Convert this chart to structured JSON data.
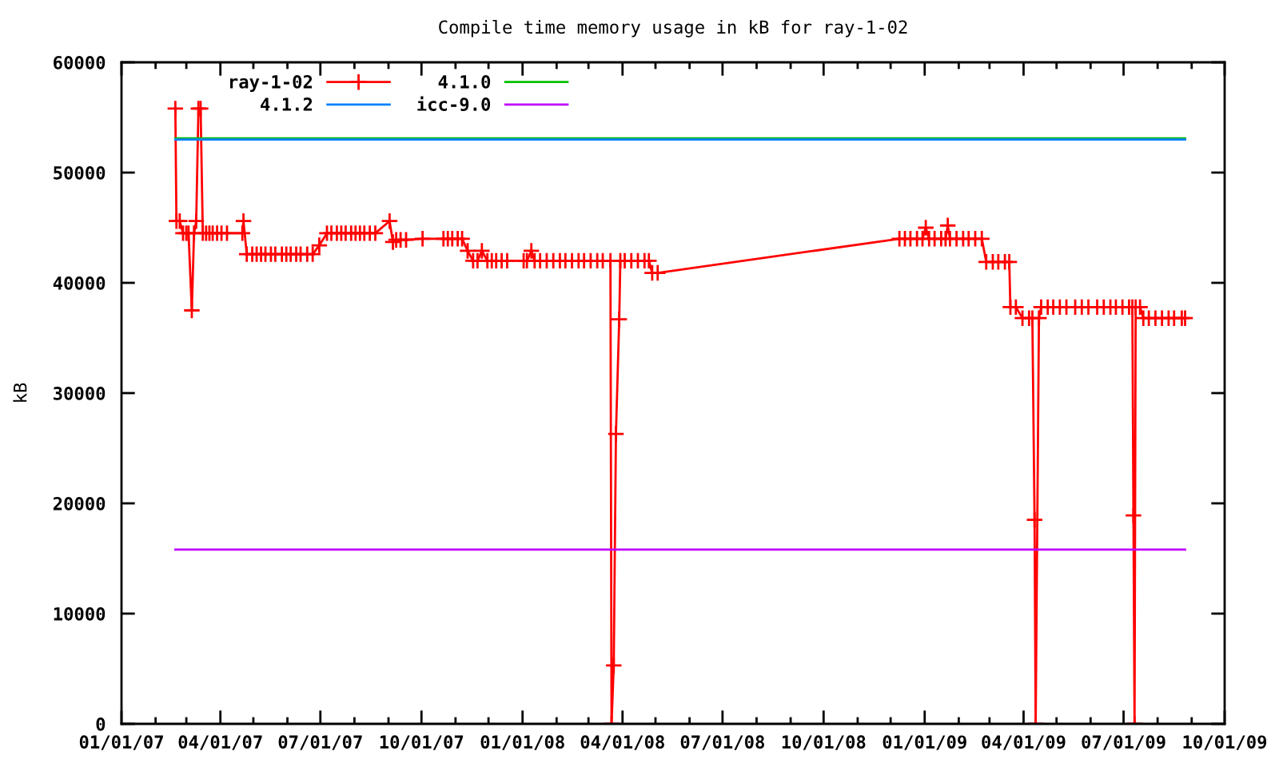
{
  "chart_data": {
    "type": "line",
    "title": "Compile time memory usage in kB for ray-1-02",
    "ylabel": "kB",
    "xlim": [
      "2007-01-01",
      "2009-10-01"
    ],
    "xticks": [
      {
        "value": "2007-01-01",
        "label": "01/01/07"
      },
      {
        "value": "2007-02-01",
        "label": null
      },
      {
        "value": "2007-03-01",
        "label": null
      },
      {
        "value": "2007-04-01",
        "label": "04/01/07"
      },
      {
        "value": "2007-05-01",
        "label": null
      },
      {
        "value": "2007-06-01",
        "label": null
      },
      {
        "value": "2007-07-01",
        "label": "07/01/07"
      },
      {
        "value": "2007-08-01",
        "label": null
      },
      {
        "value": "2007-09-01",
        "label": null
      },
      {
        "value": "2007-10-01",
        "label": "10/01/07"
      },
      {
        "value": "2007-11-01",
        "label": null
      },
      {
        "value": "2007-12-01",
        "label": null
      },
      {
        "value": "2008-01-01",
        "label": "01/01/08"
      },
      {
        "value": "2008-02-01",
        "label": null
      },
      {
        "value": "2008-03-01",
        "label": null
      },
      {
        "value": "2008-04-01",
        "label": "04/01/08"
      },
      {
        "value": "2008-05-01",
        "label": null
      },
      {
        "value": "2008-06-01",
        "label": null
      },
      {
        "value": "2008-07-01",
        "label": "07/01/08"
      },
      {
        "value": "2008-08-01",
        "label": null
      },
      {
        "value": "2008-09-01",
        "label": null
      },
      {
        "value": "2008-10-01",
        "label": "10/01/08"
      },
      {
        "value": "2008-11-01",
        "label": null
      },
      {
        "value": "2008-12-01",
        "label": null
      },
      {
        "value": "2009-01-01",
        "label": "01/01/09"
      },
      {
        "value": "2009-02-01",
        "label": null
      },
      {
        "value": "2009-03-01",
        "label": null
      },
      {
        "value": "2009-04-01",
        "label": "04/01/09"
      },
      {
        "value": "2009-05-01",
        "label": null
      },
      {
        "value": "2009-06-01",
        "label": null
      },
      {
        "value": "2009-07-01",
        "label": "07/01/09"
      },
      {
        "value": "2009-08-01",
        "label": null
      },
      {
        "value": "2009-09-01",
        "label": null
      },
      {
        "value": "2009-10-01",
        "label": "10/01/09"
      }
    ],
    "ylim": [
      0,
      60000
    ],
    "yticks": [
      0,
      10000,
      20000,
      30000,
      40000,
      50000,
      60000
    ],
    "legend": "top left",
    "series": [
      {
        "name": "ray-1-02",
        "color": "#ff0000",
        "marker": "cross",
        "x": [
          "2007-02-19",
          "2007-02-20",
          "2007-02-23",
          "2007-02-26",
          "2007-03-01",
          "2007-03-03",
          "2007-03-06",
          "2007-03-08",
          "2007-03-10",
          "2007-03-12",
          "2007-03-14",
          "2007-03-16",
          "2007-03-19",
          "2007-03-22",
          "2007-03-25",
          "2007-03-29",
          "2007-04-02",
          "2007-04-07",
          "2007-04-21",
          "2007-04-22",
          "2007-04-25",
          "2007-04-30",
          "2007-05-04",
          "2007-05-08",
          "2007-05-12",
          "2007-05-17",
          "2007-05-21",
          "2007-05-27",
          "2007-05-31",
          "2007-06-04",
          "2007-06-09",
          "2007-06-13",
          "2007-06-19",
          "2007-06-24",
          "2007-06-30",
          "2007-07-07",
          "2007-07-11",
          "2007-07-16",
          "2007-07-20",
          "2007-07-24",
          "2007-07-29",
          "2007-08-02",
          "2007-08-06",
          "2007-08-10",
          "2007-08-15",
          "2007-08-20",
          "2007-09-02",
          "2007-09-05",
          "2007-09-08",
          "2007-09-12",
          "2007-09-17",
          "2007-10-02",
          "2007-10-21",
          "2007-10-25",
          "2007-10-29",
          "2007-11-03",
          "2007-11-07",
          "2007-11-12",
          "2007-11-17",
          "2007-11-21",
          "2007-11-25",
          "2007-11-30",
          "2007-12-04",
          "2007-12-08",
          "2007-12-13",
          "2007-12-18",
          "2008-01-02",
          "2008-01-05",
          "2008-01-09",
          "2008-01-12",
          "2008-01-17",
          "2008-01-23",
          "2008-01-29",
          "2008-02-04",
          "2008-02-09",
          "2008-02-15",
          "2008-02-21",
          "2008-02-26",
          "2008-03-03",
          "2008-03-09",
          "2008-03-14",
          "2008-03-21",
          "2008-03-22",
          "2008-03-24",
          "2008-03-26",
          "2008-03-29",
          "2008-03-30",
          "2008-04-03",
          "2008-04-09",
          "2008-04-15",
          "2008-04-21",
          "2008-04-25",
          "2008-04-28",
          "2008-05-03",
          "2008-12-09",
          "2008-12-14",
          "2008-12-19",
          "2008-12-25",
          "2008-12-30",
          "2009-01-02",
          "2009-01-05",
          "2009-01-10",
          "2009-01-16",
          "2009-01-20",
          "2009-01-22",
          "2009-01-24",
          "2009-01-30",
          "2009-02-05",
          "2009-02-10",
          "2009-02-16",
          "2009-02-22",
          "2009-02-26",
          "2009-03-04",
          "2009-03-09",
          "2009-03-15",
          "2009-03-19",
          "2009-03-20",
          "2009-03-25",
          "2009-03-31",
          "2009-04-06",
          "2009-04-09",
          "2009-04-11",
          "2009-04-12",
          "2009-04-15",
          "2009-04-17",
          "2009-04-23",
          "2009-04-28",
          "2009-05-04",
          "2009-05-10",
          "2009-05-18",
          "2009-05-24",
          "2009-05-30",
          "2009-06-07",
          "2009-06-13",
          "2009-06-19",
          "2009-06-24",
          "2009-06-30",
          "2009-07-06",
          "2009-07-09",
          "2009-07-10",
          "2009-07-11",
          "2009-07-12",
          "2009-07-16",
          "2009-07-19",
          "2009-07-24",
          "2009-07-30",
          "2009-08-05",
          "2009-08-11",
          "2009-08-16",
          "2009-08-23",
          "2009-08-26"
        ],
        "values": [
          55800,
          45600,
          45600,
          44500,
          44500,
          44500,
          37500,
          44500,
          45600,
          55800,
          55800,
          44500,
          44500,
          44500,
          44500,
          44500,
          44500,
          44500,
          44500,
          45600,
          42600,
          42600,
          42600,
          42600,
          42600,
          42600,
          42600,
          42600,
          42600,
          42600,
          42600,
          42600,
          42600,
          42600,
          43400,
          44500,
          44500,
          44500,
          44500,
          44500,
          44500,
          44500,
          44500,
          44500,
          44500,
          44500,
          45600,
          43700,
          43900,
          43900,
          43900,
          44000,
          44000,
          44000,
          44000,
          44000,
          44000,
          42900,
          42000,
          42000,
          42900,
          42000,
          42000,
          42000,
          42000,
          42000,
          42000,
          42000,
          42900,
          42000,
          42000,
          42000,
          42000,
          42000,
          42000,
          42000,
          42000,
          42000,
          42000,
          42000,
          42000,
          42000,
          0,
          5300,
          26300,
          36700,
          42000,
          42000,
          42000,
          42000,
          42000,
          42000,
          40900,
          40900,
          44000,
          44000,
          44000,
          44000,
          44000,
          45000,
          44000,
          44000,
          44000,
          44000,
          45200,
          44000,
          44000,
          44000,
          44000,
          44000,
          44000,
          41900,
          41900,
          41900,
          41900,
          41900,
          37800,
          37800,
          36800,
          36800,
          36800,
          18500,
          0,
          36800,
          37800,
          37800,
          37800,
          37800,
          37800,
          37800,
          37800,
          37800,
          37800,
          37800,
          37800,
          37800,
          37800,
          37800,
          37800,
          18900,
          0,
          37800,
          37800,
          36800,
          36800,
          36800,
          36800,
          36800,
          36800,
          36800,
          36800
        ]
      },
      {
        "name": "4.1.0",
        "color": "#00c000",
        "x": [
          "2007-02-19",
          "2009-08-26"
        ],
        "values": [
          53100,
          53100
        ]
      },
      {
        "name": "4.1.2",
        "color": "#0080ff",
        "x": [
          "2007-02-19",
          "2009-08-26"
        ],
        "values": [
          53000,
          53000
        ]
      },
      {
        "name": "icc-9.0",
        "color": "#c000ff",
        "x": [
          "2007-02-19",
          "2009-08-26"
        ],
        "values": [
          15800,
          15800
        ]
      }
    ]
  }
}
